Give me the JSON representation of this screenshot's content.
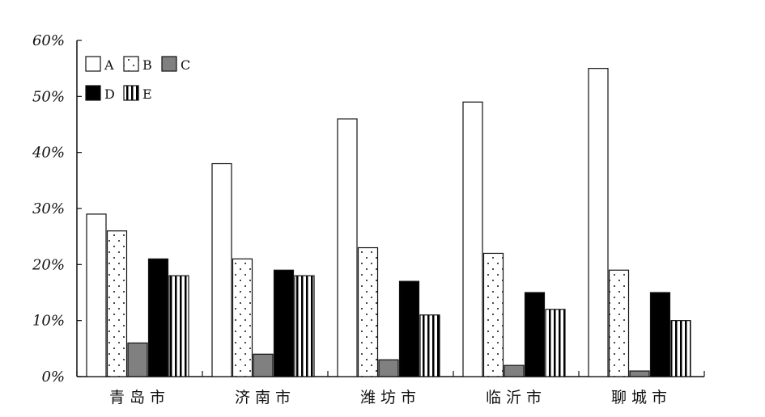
{
  "chart_data": {
    "type": "bar",
    "title": "",
    "xlabel": "",
    "ylabel": "",
    "categories": [
      "青岛市",
      "济南市",
      "潍坊市",
      "临沂市",
      "聊城市"
    ],
    "series": [
      {
        "name": "A",
        "values": [
          29,
          38,
          46,
          49,
          55
        ],
        "fill": "#ffffff",
        "pattern": "none"
      },
      {
        "name": "B",
        "values": [
          26,
          21,
          23,
          22,
          19
        ],
        "fill": "#ffffff",
        "pattern": "dots"
      },
      {
        "name": "C",
        "values": [
          6,
          4,
          3,
          2,
          1
        ],
        "fill": "#808080",
        "pattern": "none"
      },
      {
        "name": "D",
        "values": [
          21,
          19,
          17,
          15,
          15
        ],
        "fill": "#000000",
        "pattern": "none"
      },
      {
        "name": "E",
        "values": [
          18,
          18,
          11,
          12,
          10
        ],
        "fill": "#ffffff",
        "pattern": "vertical-stripes"
      }
    ],
    "ylim": [
      0,
      60
    ],
    "yticks": [
      0,
      10,
      20,
      30,
      40,
      50,
      60
    ],
    "ytick_labels": [
      "0%",
      "10%",
      "20%",
      "30%",
      "40%",
      "50%",
      "60%"
    ],
    "grid": false,
    "legend": {
      "position": "top-left",
      "rows": [
        [
          "A",
          "B",
          "C"
        ],
        [
          "D",
          "E"
        ]
      ]
    }
  }
}
